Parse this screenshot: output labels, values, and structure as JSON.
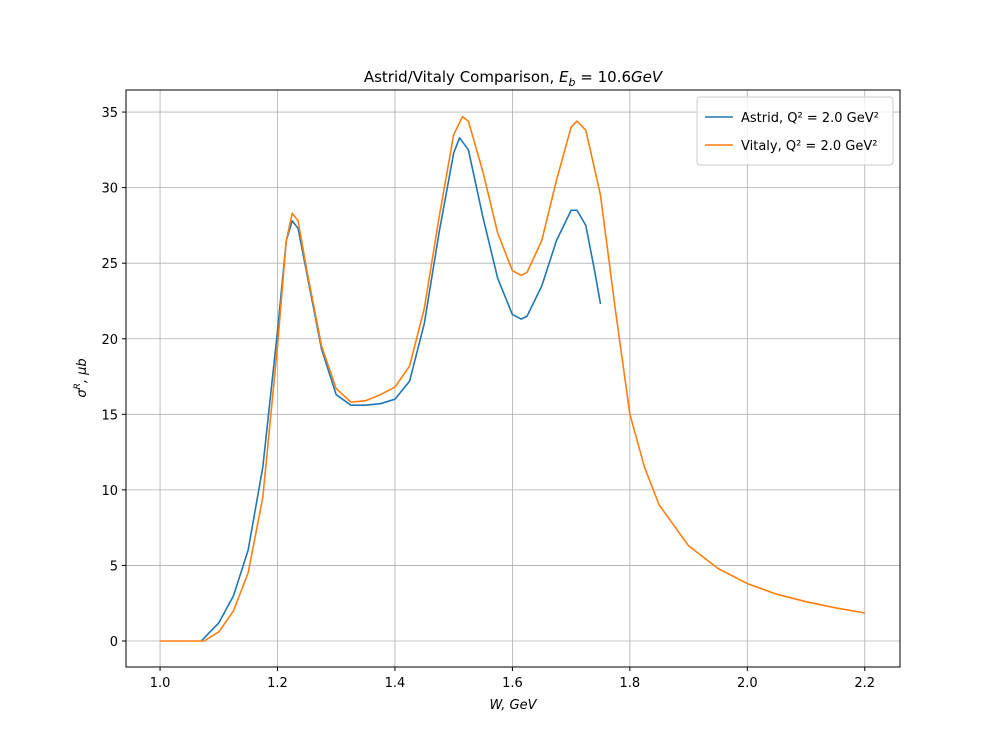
{
  "chart_data": {
    "type": "line",
    "title": [
      "Astrid/Vitaly Comparison, ",
      "E",
      "b",
      " = 10.6",
      "GeV"
    ],
    "x_label": "W, GeV",
    "y_label": [
      "σ",
      "R",
      ", μb"
    ],
    "xlim": [
      0.942,
      2.26
    ],
    "ylim": [
      -1.72,
      36.46
    ],
    "xticks": [
      {
        "value": 1,
        "label": "1.0"
      },
      1.2,
      1.4,
      1.6,
      1.8,
      {
        "value": 2,
        "label": "2.0"
      },
      2.2
    ],
    "yticks": [
      0,
      5,
      10,
      15,
      20,
      25,
      30,
      35
    ],
    "grid": true,
    "legend": "upper right",
    "series": [
      {
        "name": "Astrid, Q² = 2.0 GeV²",
        "color": "#1f77b4",
        "x": [
          1.07,
          1.1,
          1.125,
          1.15,
          1.175,
          1.2,
          1.215,
          1.225,
          1.235,
          1.25,
          1.275,
          1.3,
          1.325,
          1.35,
          1.375,
          1.4,
          1.425,
          1.45,
          1.475,
          1.5,
          1.51,
          1.525,
          1.55,
          1.575,
          1.6,
          1.615,
          1.625,
          1.65,
          1.675,
          1.7,
          1.71,
          1.725,
          1.74,
          1.75
        ],
        "values": [
          0,
          1.2,
          3.0,
          6.0,
          11.5,
          20.5,
          26.5,
          27.8,
          27.3,
          24.3,
          19.3,
          16.3,
          15.6,
          15.6,
          15.7,
          16.0,
          17.2,
          21.0,
          27,
          32.3,
          33.3,
          32.5,
          28,
          24,
          21.6,
          21.3,
          21.5,
          23.5,
          26.5,
          28.5,
          28.5,
          27.5,
          24.5,
          22.3
        ]
      },
      {
        "name": "Vitaly, Q² = 2.0 GeV²",
        "color": "#ff7f0e",
        "x": [
          1.0,
          1.05,
          1.075,
          1.1,
          1.125,
          1.15,
          1.175,
          1.2,
          1.215,
          1.225,
          1.235,
          1.25,
          1.275,
          1.3,
          1.325,
          1.35,
          1.375,
          1.4,
          1.425,
          1.45,
          1.475,
          1.5,
          1.515,
          1.525,
          1.55,
          1.575,
          1.6,
          1.615,
          1.625,
          1.65,
          1.675,
          1.7,
          1.71,
          1.725,
          1.75,
          1.775,
          1.8,
          1.825,
          1.85,
          1.9,
          1.95,
          2.0,
          2.05,
          2.1,
          2.15,
          2.2
        ],
        "values": [
          0,
          0,
          0,
          0.6,
          2.0,
          4.5,
          9.5,
          19.5,
          26.5,
          28.3,
          27.8,
          24.5,
          19.5,
          16.7,
          15.8,
          15.9,
          16.3,
          16.8,
          18.2,
          22,
          28,
          33.5,
          34.7,
          34.4,
          31,
          27,
          24.5,
          24.2,
          24.4,
          26.5,
          30.5,
          34,
          34.4,
          33.8,
          29.5,
          22,
          15,
          11.5,
          9,
          6.3,
          4.8,
          3.8,
          3.1,
          2.6,
          2.2,
          1.85
        ]
      }
    ]
  }
}
